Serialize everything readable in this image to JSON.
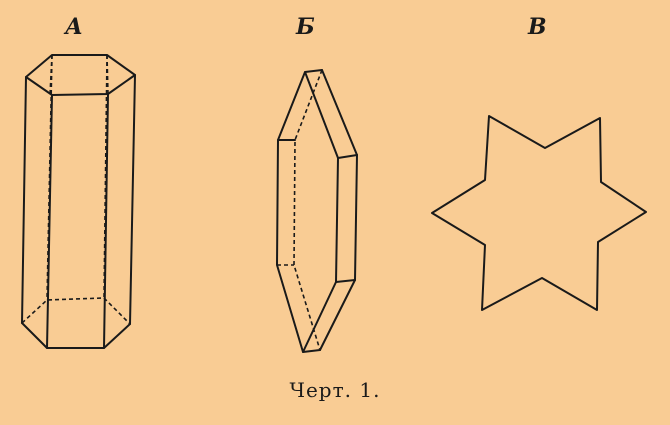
{
  "figures": [
    {
      "label": "А",
      "shape": "hexagonal-prism-tall"
    },
    {
      "label": "Б",
      "shape": "hexagonal-plate-side-view"
    },
    {
      "label": "В",
      "shape": "six-pointed-star"
    }
  ],
  "caption": "Черт. 1."
}
